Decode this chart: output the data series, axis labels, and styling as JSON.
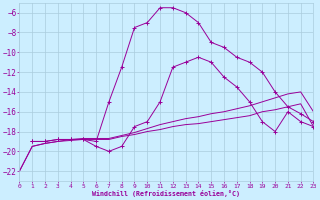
{
  "xlabel": "Windchill (Refroidissement éolien,°C)",
  "background_color": "#cceeff",
  "grid_color": "#aaccdd",
  "line_color": "#990099",
  "xlim": [
    0,
    23
  ],
  "ylim": [
    -23,
    -5
  ],
  "xticks": [
    0,
    1,
    2,
    3,
    4,
    5,
    6,
    7,
    8,
    9,
    10,
    11,
    12,
    13,
    14,
    15,
    16,
    17,
    18,
    19,
    20,
    21,
    22,
    23
  ],
  "yticks": [
    -22,
    -20,
    -18,
    -16,
    -14,
    -12,
    -10,
    -8,
    -6
  ],
  "series": [
    {
      "x": [
        0,
        1,
        2,
        3,
        4,
        5,
        6,
        7,
        8,
        9,
        10,
        11,
        12,
        13,
        14,
        15,
        16,
        17,
        18,
        19,
        20,
        21,
        22,
        23
      ],
      "y": [
        -22.0,
        -19.5,
        -19.2,
        -19.0,
        -18.9,
        -18.8,
        -18.8,
        -18.8,
        -18.5,
        -18.3,
        -18.0,
        -17.8,
        -17.5,
        -17.3,
        -17.2,
        -17.0,
        -16.8,
        -16.6,
        -16.4,
        -16.0,
        -15.8,
        -15.5,
        -15.2,
        -17.5
      ],
      "markers": false
    },
    {
      "x": [
        0,
        1,
        2,
        3,
        4,
        5,
        6,
        7,
        8,
        9,
        10,
        11,
        12,
        13,
        14,
        15,
        16,
        17,
        18,
        19,
        20,
        21,
        22,
        23
      ],
      "y": [
        -22.0,
        -19.5,
        -19.2,
        -19.0,
        -18.8,
        -18.7,
        -18.7,
        -18.7,
        -18.4,
        -18.1,
        -17.7,
        -17.3,
        -17.0,
        -16.7,
        -16.5,
        -16.2,
        -16.0,
        -15.7,
        -15.4,
        -15.0,
        -14.6,
        -14.2,
        -14.0,
        -16.0
      ],
      "markers": false
    },
    {
      "x": [
        1,
        2,
        3,
        4,
        5,
        6,
        7,
        8,
        9,
        10,
        11,
        12,
        13,
        14,
        15,
        16,
        17,
        18,
        19,
        20,
        21,
        22,
        23
      ],
      "y": [
        -19.0,
        -19.0,
        -18.8,
        -18.8,
        -18.8,
        -19.0,
        -15.0,
        -11.5,
        -7.5,
        -7.0,
        -5.5,
        -5.5,
        -6.0,
        -7.0,
        -9.0,
        -9.5,
        -10.5,
        -11.0,
        -12.0,
        -14.0,
        -15.5,
        -16.2,
        -17.0
      ],
      "markers": true
    },
    {
      "x": [
        1,
        2,
        3,
        4,
        5,
        6,
        7,
        8,
        9,
        10,
        11,
        12,
        13,
        14,
        15,
        16,
        17,
        18,
        19,
        20,
        21,
        22,
        23
      ],
      "y": [
        -19.0,
        -19.0,
        -18.8,
        -18.8,
        -18.8,
        -19.5,
        -20.0,
        -19.5,
        -17.5,
        -17.0,
        -15.0,
        -11.5,
        -11.0,
        -10.5,
        -11.0,
        -12.5,
        -13.5,
        -15.0,
        -17.0,
        -18.0,
        -16.0,
        -17.0,
        -17.5
      ],
      "markers": true
    }
  ]
}
